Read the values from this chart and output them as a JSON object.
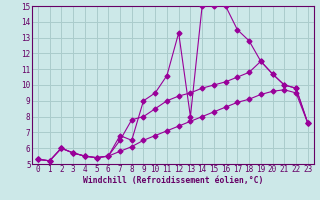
{
  "xlabel": "Windchill (Refroidissement éolien,°C)",
  "bg_color": "#cce8e8",
  "grid_color": "#aacccc",
  "line_color": "#990099",
  "xlim": [
    -0.5,
    23.5
  ],
  "ylim": [
    5,
    15
  ],
  "yticks": [
    5,
    6,
    7,
    8,
    9,
    10,
    11,
    12,
    13,
    14,
    15
  ],
  "xticks": [
    0,
    1,
    2,
    3,
    4,
    5,
    6,
    7,
    8,
    9,
    10,
    11,
    12,
    13,
    14,
    15,
    16,
    17,
    18,
    19,
    20,
    21,
    22,
    23
  ],
  "series1_x": [
    0,
    1,
    2,
    3,
    4,
    5,
    6,
    7,
    8,
    9,
    10,
    11,
    12,
    13,
    14,
    15,
    16,
    17,
    18,
    19,
    20,
    21,
    22,
    23
  ],
  "series1_y": [
    5.3,
    5.2,
    6.0,
    5.7,
    5.5,
    5.4,
    5.5,
    6.8,
    6.5,
    9.0,
    9.5,
    10.6,
    13.3,
    8.0,
    15.0,
    15.0,
    15.0,
    13.5,
    12.8,
    11.5,
    10.7,
    10.0,
    9.8,
    7.6
  ],
  "series2_x": [
    0,
    1,
    2,
    3,
    4,
    5,
    6,
    7,
    8,
    9,
    10,
    11,
    12,
    13,
    14,
    15,
    16,
    17,
    18,
    19,
    20,
    21,
    22,
    23
  ],
  "series2_y": [
    5.3,
    5.2,
    6.0,
    5.7,
    5.5,
    5.4,
    5.5,
    6.5,
    7.8,
    8.0,
    8.5,
    9.0,
    9.3,
    9.5,
    9.8,
    10.0,
    10.2,
    10.5,
    10.8,
    11.5,
    10.7,
    10.0,
    9.8,
    7.6
  ],
  "series3_x": [
    0,
    1,
    2,
    3,
    4,
    5,
    6,
    7,
    8,
    9,
    10,
    11,
    12,
    13,
    14,
    15,
    16,
    17,
    18,
    19,
    20,
    21,
    22,
    23
  ],
  "series3_y": [
    5.3,
    5.2,
    6.0,
    5.7,
    5.5,
    5.4,
    5.5,
    5.8,
    6.1,
    6.5,
    6.8,
    7.1,
    7.4,
    7.7,
    8.0,
    8.3,
    8.6,
    8.9,
    9.1,
    9.4,
    9.6,
    9.7,
    9.5,
    7.6
  ],
  "tick_fontsize": 5.5,
  "xlabel_fontsize": 5.8,
  "tick_color": "#660066",
  "spine_color": "#660066"
}
